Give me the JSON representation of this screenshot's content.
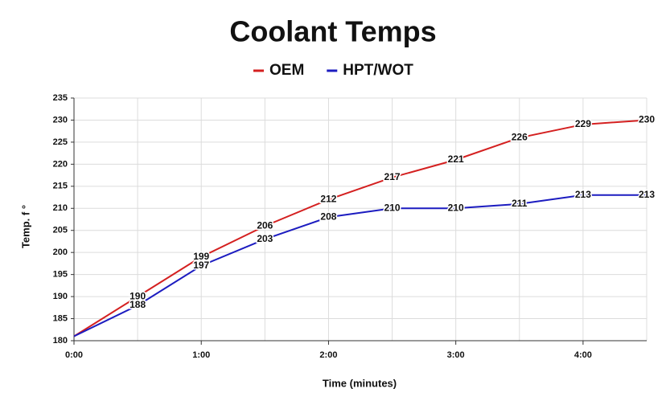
{
  "chart_data": {
    "type": "line",
    "title": "Coolant Temps",
    "x_label": "Time (minutes)",
    "y_label": "Temp. f °",
    "x": [
      0,
      0.5,
      1,
      1.5,
      2,
      2.5,
      3,
      3.5,
      4,
      4.5
    ],
    "series": [
      {
        "name": "OEM",
        "color": "#d42020",
        "values": [
          181,
          190,
          199,
          206,
          212,
          217,
          221,
          226,
          229,
          230
        ]
      },
      {
        "name": "HPT/WOT",
        "color": "#1c1cc0",
        "values": [
          181,
          188,
          197,
          203,
          208,
          210,
          210,
          211,
          213,
          213
        ]
      }
    ],
    "xlim": [
      0,
      4.5
    ],
    "xticks": [
      {
        "value": 0,
        "label": "0:00"
      },
      {
        "value": 1,
        "label": "1:00"
      },
      {
        "value": 2,
        "label": "2:00"
      },
      {
        "value": 3,
        "label": "3:00"
      },
      {
        "value": 4,
        "label": "4:00"
      }
    ],
    "ylim": [
      180,
      235
    ],
    "yticks": [
      180,
      185,
      190,
      195,
      200,
      205,
      210,
      215,
      220,
      225,
      230,
      235
    ],
    "grid": true,
    "legend": "top"
  }
}
